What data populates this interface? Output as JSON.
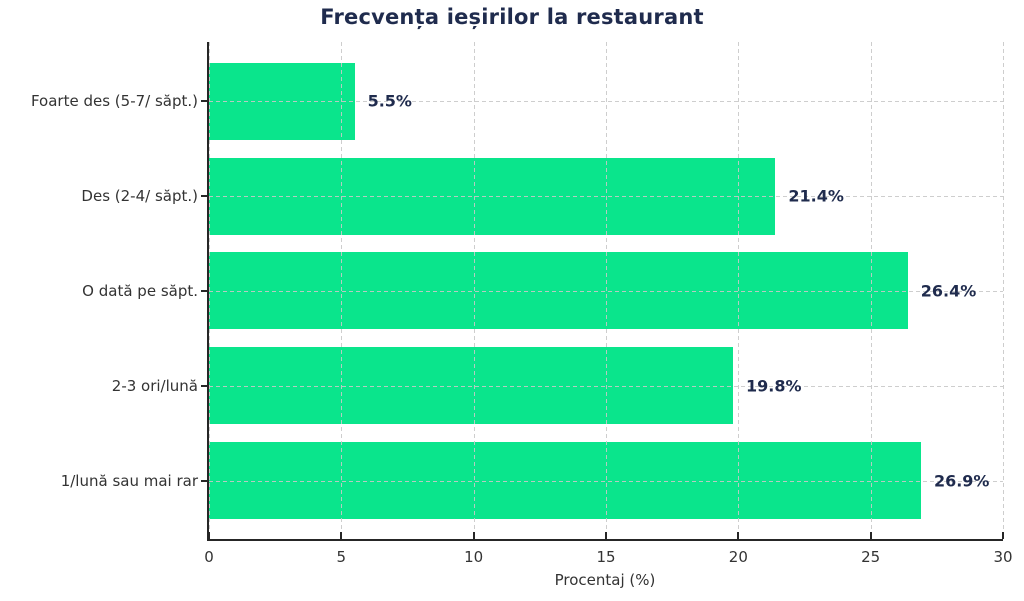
{
  "figure": {
    "background": "#FFFFFF"
  },
  "colors": {
    "bar": "#0AE58C",
    "title_text": "#1F2B4D",
    "value_label_text": "#1F2B4D",
    "axis_text": "#333333",
    "grid": "rgba(200,200,200,0.9)",
    "spine": "#262626"
  },
  "chart_data": {
    "type": "bar",
    "orientation": "horizontal",
    "title": "Frecvența ieșirilor la restaurant",
    "xlabel": "Procentaj (%)",
    "ylabel": "",
    "categories": [
      "Foarte des (5-7/ săpt.)",
      "Des (2-4/ săpt.)",
      "O dată pe săpt.",
      "2-3 ori/lună",
      "1/lună sau mai rar"
    ],
    "values": [
      5.5,
      21.4,
      26.4,
      19.8,
      26.9
    ],
    "value_labels": [
      "5.5%",
      "21.4%",
      "26.4%",
      "19.8%",
      "26.9%"
    ],
    "xlim": [
      0,
      30
    ],
    "xticks": [
      0,
      5,
      10,
      15,
      20,
      25,
      30
    ],
    "xtick_labels": [
      "0",
      "5",
      "10",
      "15",
      "20",
      "25",
      "30"
    ],
    "grid": "dashed, both axes, drawn over bars",
    "legend": "none"
  }
}
